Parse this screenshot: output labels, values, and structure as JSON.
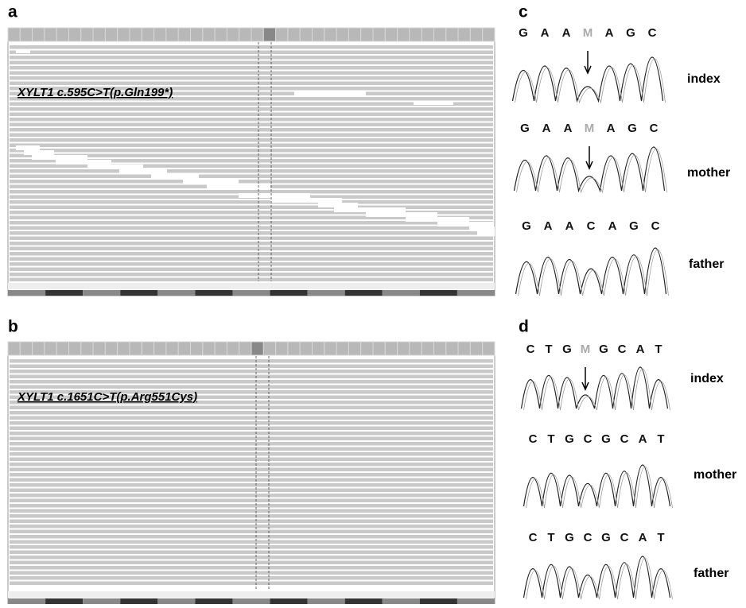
{
  "panels": [
    {
      "label": "a",
      "variant": "XYLT1 c.595C>T(p.Gln199*)"
    },
    {
      "label": "b",
      "variant": "XYLT1 c.1651C>T(p.Arg551Cys)"
    },
    {
      "label": "c",
      "traces": [
        {
          "name": "index",
          "bases": [
            "G",
            "A",
            "A",
            {
              "text": "M",
              "color": "#aaaaaa"
            },
            "A",
            "G",
            "C"
          ]
        },
        {
          "name": "mother",
          "bases": [
            "G",
            "A",
            "A",
            {
              "text": "M",
              "color": "#aaaaaa"
            },
            "A",
            "G",
            "C"
          ]
        },
        {
          "name": "father",
          "bases": [
            "G",
            "A",
            "A",
            "C",
            "A",
            "G",
            "C"
          ]
        }
      ]
    },
    {
      "label": "d",
      "traces": [
        {
          "name": "index",
          "bases": [
            "C",
            "T",
            "G",
            {
              "text": "M",
              "color": "#aaaaaa"
            },
            "G",
            "C",
            "A",
            "T"
          ]
        },
        {
          "name": "mother",
          "bases": [
            "C",
            "T",
            "G",
            "C",
            "G",
            "C",
            "A",
            "T"
          ]
        },
        {
          "name": "father",
          "bases": [
            "C",
            "T",
            "G",
            "C",
            "G",
            "C",
            "A",
            "T"
          ]
        }
      ]
    }
  ]
}
